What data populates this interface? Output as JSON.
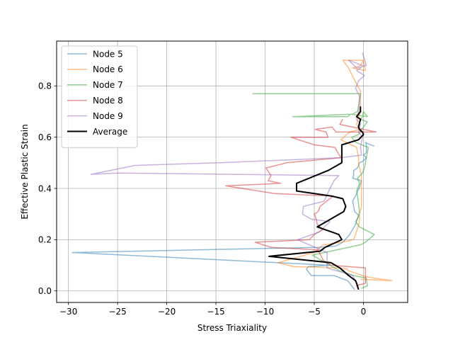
{
  "chart_data": {
    "type": "line",
    "xlabel": "Stress Triaxiality",
    "ylabel": "Effective Plastic Strain",
    "xlim": [
      -31.2,
      4.5
    ],
    "ylim": [
      -0.045,
      0.975
    ],
    "xticks": [
      -30,
      -25,
      -20,
      -15,
      -10,
      -5,
      0
    ],
    "yticks": [
      0.0,
      0.2,
      0.4,
      0.6,
      0.8
    ],
    "xtick_labels": [
      "−30",
      "−25",
      "−20",
      "−15",
      "−10",
      "−5",
      "0"
    ],
    "ytick_labels": [
      "0.0",
      "0.2",
      "0.4",
      "0.6",
      "0.8"
    ],
    "grid": true,
    "legend_position": "upper-left",
    "series": [
      {
        "name": "Node 5",
        "color": "#1f77b4",
        "alpha": 0.5,
        "x": [
          -0.9,
          -1.6,
          -3.0,
          -5.3,
          -5.8,
          -5.6,
          -3.4,
          -29.6,
          -4.6,
          -2.8,
          -2.1,
          -1.4,
          -0.8,
          -0.5,
          -0.9,
          -1.1,
          -0.7,
          -0.4,
          -0.2,
          -1.1,
          -1.0,
          -1.0,
          -0.6,
          -0.4,
          -0.1,
          0.3,
          0.0,
          0.3,
          0.3,
          0.3,
          0.2,
          0.4,
          1.1
        ],
        "y": [
          0.005,
          0.04,
          0.06,
          0.06,
          0.085,
          0.095,
          0.1,
          0.15,
          0.17,
          0.175,
          0.19,
          0.22,
          0.26,
          0.295,
          0.31,
          0.35,
          0.38,
          0.405,
          0.43,
          0.44,
          0.45,
          0.47,
          0.48,
          0.5,
          0.505,
          0.52,
          0.53,
          0.54,
          0.55,
          0.57,
          0.58,
          0.575,
          0.565
        ]
      },
      {
        "name": "Node 6",
        "color": "#ff7f0e",
        "alpha": 0.5,
        "x": [
          -0.3,
          2.9,
          0.3,
          -1.6,
          -1.6,
          -2.3,
          -7.1,
          -8.7,
          -5.0,
          -4.1,
          -2.2,
          -1.0,
          -0.8,
          -0.4,
          -0.4,
          -0.2,
          -0.2,
          -0.2,
          -0.2,
          -0.2,
          -0.4,
          -0.5,
          -0.5,
          -0.6,
          -0.7,
          -2.3,
          -1.4,
          -0.4,
          -0.7,
          -0.4,
          -0.3,
          -0.3,
          -1.0,
          -1.5,
          -2.1,
          0.0,
          0.2,
          -1.1,
          -0.3,
          0.0
        ],
        "y": [
          0.045,
          0.04,
          0.055,
          0.08,
          0.085,
          0.09,
          0.095,
          0.11,
          0.15,
          0.18,
          0.19,
          0.2,
          0.22,
          0.27,
          0.3,
          0.33,
          0.37,
          0.4,
          0.43,
          0.45,
          0.48,
          0.5,
          0.52,
          0.54,
          0.56,
          0.59,
          0.62,
          0.63,
          0.65,
          0.69,
          0.72,
          0.78,
          0.83,
          0.87,
          0.9,
          0.9,
          0.86,
          0.87,
          0.88,
          0.9
        ]
      },
      {
        "name": "Node 7",
        "color": "#2ca02c",
        "alpha": 0.5,
        "x": [
          -0.2,
          0.4,
          0.3,
          -1.0,
          -2.5,
          -3.4,
          -5.2,
          -0.3,
          0.2,
          1.1,
          -0.4,
          -0.8,
          -0.5,
          -0.4,
          -0.5,
          -0.6,
          -0.7,
          -0.4,
          -0.6,
          -0.1,
          0.1,
          0.3,
          0.5,
          -0.8,
          -1.2,
          -0.5,
          -0.2,
          0.4,
          -0.3,
          -0.1,
          0.0,
          0.4,
          -1.3,
          -1.6,
          -7.2,
          -1.1,
          -0.6,
          -0.3,
          -1.4,
          -11.3
        ],
        "y": [
          0.01,
          0.02,
          0.05,
          0.06,
          0.08,
          0.1,
          0.14,
          0.18,
          0.19,
          0.22,
          0.25,
          0.27,
          0.29,
          0.31,
          0.34,
          0.37,
          0.39,
          0.42,
          0.44,
          0.46,
          0.48,
          0.52,
          0.56,
          0.58,
          0.6,
          0.61,
          0.63,
          0.66,
          0.67,
          0.68,
          0.7,
          0.68,
          0.69,
          0.68,
          0.68,
          0.69,
          0.7,
          0.77,
          0.77,
          0.77
        ]
      },
      {
        "name": "Node 8",
        "color": "#d62728",
        "alpha": 0.5,
        "x": [
          -0.8,
          0.2,
          0.2,
          -3.3,
          -4.1,
          -4.6,
          -9.4,
          -11.0,
          -5.5,
          -5.0,
          -4.1,
          -4.7,
          -4.8,
          -5.0,
          -4.6,
          -4.4,
          -3.1,
          -9.0,
          -14.0,
          -8.4,
          -9.7,
          -9.4,
          -9.9,
          -7.8,
          -2.3,
          -2.9,
          -5.0,
          -7.4,
          -3.6,
          -3.8,
          -4.9,
          -3.2,
          -2.8,
          1.3,
          -2.4,
          -2.1
        ],
        "y": [
          0.02,
          0.03,
          0.09,
          0.1,
          0.12,
          0.16,
          0.17,
          0.19,
          0.2,
          0.22,
          0.24,
          0.26,
          0.28,
          0.3,
          0.31,
          0.33,
          0.37,
          0.38,
          0.41,
          0.42,
          0.43,
          0.45,
          0.48,
          0.5,
          0.52,
          0.56,
          0.57,
          0.6,
          0.6,
          0.62,
          0.63,
          0.64,
          0.62,
          0.62,
          0.65,
          0.67
        ]
      },
      {
        "name": "Node 9",
        "color": "#9467bd",
        "alpha": 0.5,
        "x": [
          -0.6,
          -0.7,
          -1.1,
          -3.7,
          -3.7,
          -3.7,
          -6.7,
          -4.5,
          -3.4,
          -5.3,
          -6.2,
          -6.1,
          -4.0,
          -3.4,
          -3.0,
          -2.5,
          -24.8,
          -27.7,
          -23.2,
          -14.6,
          -2.3,
          -0.2,
          -0.3,
          -0.1,
          -0.5,
          -0.3,
          -0.7,
          -0.5,
          -0.4,
          -0.4,
          -0.8,
          -0.5,
          0.1,
          -0.7,
          -0.3,
          -0.1,
          -1.5,
          -0.7,
          0.3,
          -0.1
        ],
        "y": [
          0.01,
          0.03,
          0.06,
          0.09,
          0.12,
          0.15,
          0.2,
          0.23,
          0.27,
          0.28,
          0.3,
          0.33,
          0.35,
          0.4,
          0.43,
          0.45,
          0.46,
          0.455,
          0.49,
          0.5,
          0.52,
          0.53,
          0.56,
          0.6,
          0.62,
          0.65,
          0.67,
          0.7,
          0.74,
          0.76,
          0.79,
          0.82,
          0.84,
          0.86,
          0.87,
          0.88,
          0.9,
          0.87,
          0.88,
          0.93
        ]
      },
      {
        "name": "Average",
        "color": "#000000",
        "alpha": 1,
        "x": [
          -0.5,
          -0.6,
          -0.8,
          -1.5,
          -2.4,
          -3.3,
          -9.6,
          -4.4,
          -3.9,
          -2.2,
          -2.5,
          -4.7,
          -2.0,
          -1.8,
          -2.1,
          -3.2,
          -6.8,
          -6.8,
          -3.6,
          -2.2,
          -2.2,
          -0.5,
          0.0,
          -0.1,
          -0.4,
          -0.5,
          -0.3,
          -0.7,
          -0.3,
          -0.3
        ],
        "y": [
          0.005,
          0.02,
          0.04,
          0.06,
          0.09,
          0.11,
          0.135,
          0.155,
          0.17,
          0.2,
          0.22,
          0.25,
          0.31,
          0.33,
          0.36,
          0.37,
          0.39,
          0.42,
          0.47,
          0.5,
          0.57,
          0.59,
          0.61,
          0.62,
          0.63,
          0.64,
          0.67,
          0.68,
          0.7,
          0.72
        ]
      }
    ]
  }
}
